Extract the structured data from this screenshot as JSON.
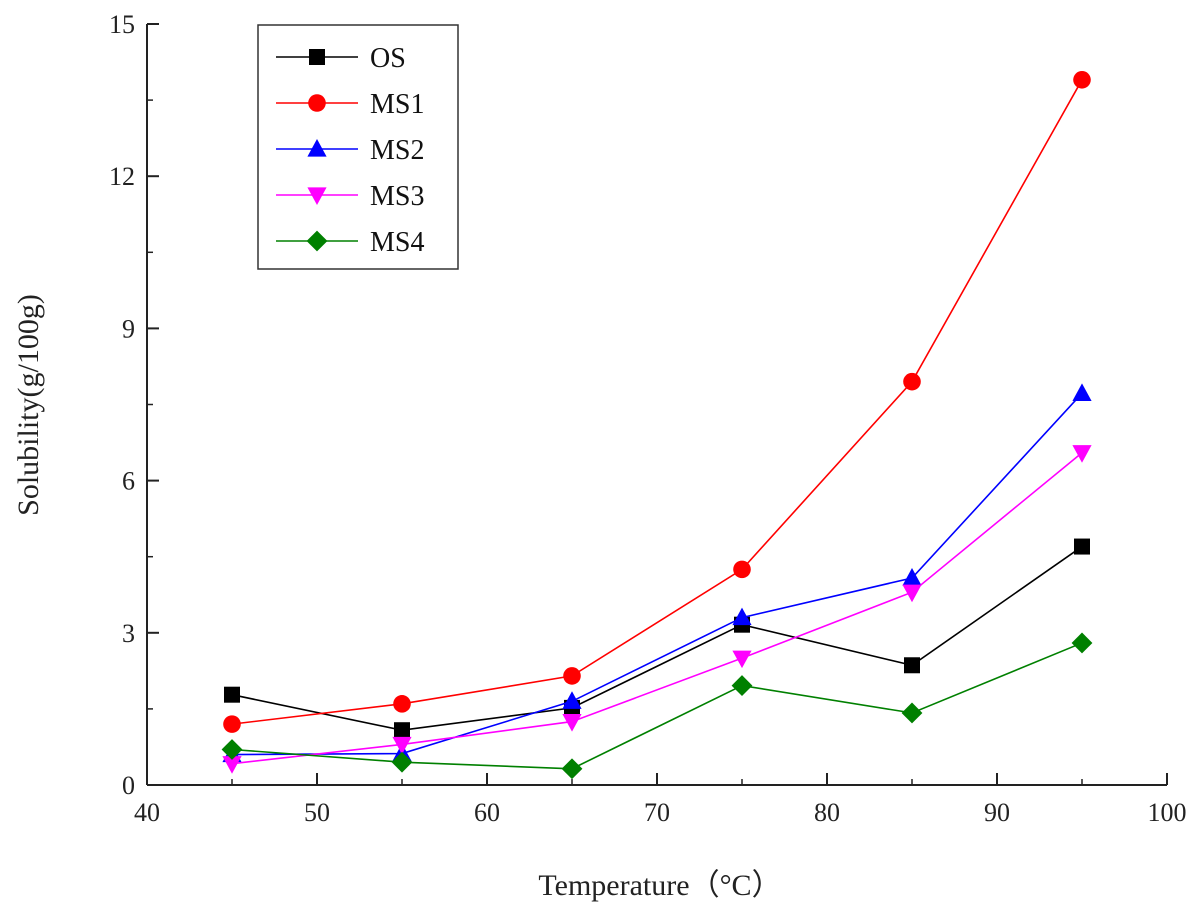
{
  "chart_data": {
    "type": "line",
    "title": "",
    "xlabel": "Temperature（°C）",
    "ylabel": "Solubility(g/100g)",
    "xlim": [
      40,
      100
    ],
    "ylim": [
      0,
      15
    ],
    "xticks": [
      40,
      50,
      60,
      70,
      80,
      90,
      100
    ],
    "yticks": [
      0,
      3,
      6,
      9,
      12,
      15
    ],
    "grid": false,
    "legend_position": "top-left",
    "x": [
      45,
      55,
      65,
      75,
      85,
      95
    ],
    "series": [
      {
        "name": "OS",
        "color": "#000000",
        "marker": "square",
        "values": [
          1.78,
          1.08,
          1.52,
          3.16,
          2.36,
          4.7
        ]
      },
      {
        "name": "MS1",
        "color": "#ff0000",
        "marker": "circle",
        "values": [
          1.2,
          1.6,
          2.15,
          4.25,
          7.95,
          13.9
        ]
      },
      {
        "name": "MS2",
        "color": "#0000ff",
        "marker": "triangle-up",
        "values": [
          0.6,
          0.62,
          1.65,
          3.3,
          4.08,
          7.72
        ]
      },
      {
        "name": "MS3",
        "color": "#ff00ff",
        "marker": "triangle-down",
        "values": [
          0.42,
          0.8,
          1.25,
          2.5,
          3.8,
          6.55
        ]
      },
      {
        "name": "MS4",
        "color": "#008000",
        "marker": "diamond",
        "values": [
          0.7,
          0.45,
          0.32,
          1.96,
          1.42,
          2.8
        ]
      }
    ]
  }
}
